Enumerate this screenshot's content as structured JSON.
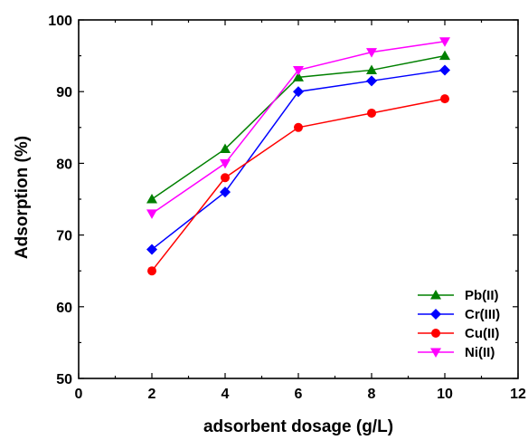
{
  "chart_data": {
    "type": "line",
    "title": "",
    "xlabel": "adsorbent dosage (g/L)",
    "ylabel": "Adsorption (%)",
    "xlim": [
      0,
      12
    ],
    "ylim": [
      50,
      100
    ],
    "xticks": [
      0,
      2,
      4,
      6,
      8,
      10,
      12
    ],
    "yticks": [
      50,
      60,
      70,
      80,
      90,
      100
    ],
    "xtick_labels": [
      "0",
      "2",
      "4",
      "6",
      "8",
      "10",
      "12"
    ],
    "ytick_labels": [
      "50",
      "60",
      "70",
      "80",
      "90",
      "100"
    ],
    "grid": false,
    "legend": "bottom-right",
    "x": [
      2,
      4,
      6,
      8,
      10
    ],
    "series": [
      {
        "name": "Pb(II)",
        "values": [
          75,
          82,
          92,
          93,
          95
        ],
        "color": "#008000",
        "marker": "triangle-up"
      },
      {
        "name": "Cr(III)",
        "values": [
          68,
          76,
          90,
          91.5,
          93
        ],
        "color": "#0000ff",
        "marker": "diamond"
      },
      {
        "name": "Cu(II)",
        "values": [
          65,
          78,
          85,
          87,
          89
        ],
        "color": "#ff0000",
        "marker": "circle"
      },
      {
        "name": "Ni(II)",
        "values": [
          73,
          80,
          93,
          95.5,
          97
        ],
        "color": "#ff00ff",
        "marker": "triangle-down"
      }
    ]
  }
}
